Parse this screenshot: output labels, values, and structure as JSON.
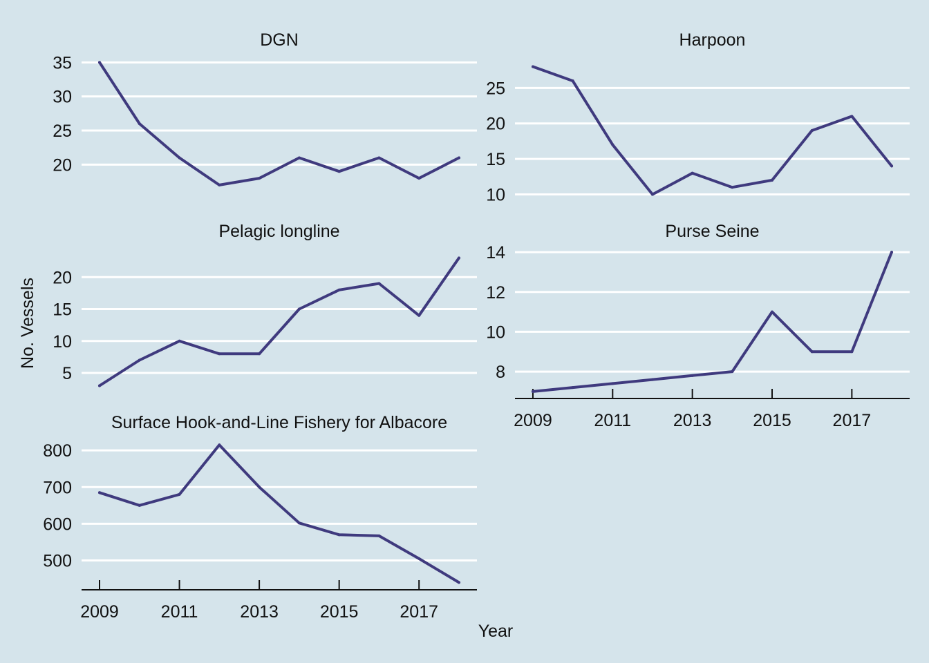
{
  "chart_data": {
    "type": "line",
    "layout": "facet-wrap",
    "xlabel": "Year",
    "ylabel": "No. Vessels",
    "x": [
      2009,
      2010,
      2011,
      2012,
      2013,
      2014,
      2015,
      2016,
      2017,
      2018
    ],
    "xlim": [
      2008.55,
      2018.45
    ],
    "x_ticks": [
      2009,
      2011,
      2013,
      2015,
      2017
    ],
    "line_color": "#3f3a7e",
    "background": "#d5e4eb",
    "grid": true,
    "panels": [
      {
        "title": "DGN",
        "values": [
          35,
          26,
          21,
          17,
          18,
          21,
          19,
          21,
          18,
          21
        ],
        "ylim": [
          13.75,
          36.25
        ],
        "y_ticks": [
          20,
          25,
          30,
          35
        ],
        "x_axis_shown": false
      },
      {
        "title": "Harpoon",
        "values": [
          28,
          26,
          17,
          10,
          13,
          11,
          12,
          19,
          21,
          14
        ],
        "ylim": [
          8.2,
          29.8
        ],
        "y_ticks": [
          10,
          15,
          20,
          25
        ],
        "x_axis_shown": false
      },
      {
        "title": "Pelagic longline",
        "values": [
          3,
          7,
          10,
          8,
          8,
          15,
          18,
          19,
          14,
          23
        ],
        "ylim": [
          1.0,
          25.0
        ],
        "y_ticks": [
          5,
          10,
          15,
          20
        ],
        "x_axis_shown": false
      },
      {
        "title": "Purse Seine",
        "values": [
          7,
          7.2,
          7.4,
          7.6,
          7.8,
          8,
          11,
          9,
          9,
          14
        ],
        "ylim": [
          6.65,
          14.35
        ],
        "y_ticks": [
          8,
          10,
          12,
          14
        ],
        "x_axis_shown": true
      },
      {
        "title": "Surface Hook-and-Line Fishery for Albacore",
        "values": [
          685,
          650,
          680,
          815,
          700,
          602,
          570,
          567,
          505,
          440
        ],
        "ylim": [
          420,
          838
        ],
        "y_ticks": [
          500,
          600,
          700,
          800
        ],
        "x_axis_shown": true
      }
    ]
  }
}
